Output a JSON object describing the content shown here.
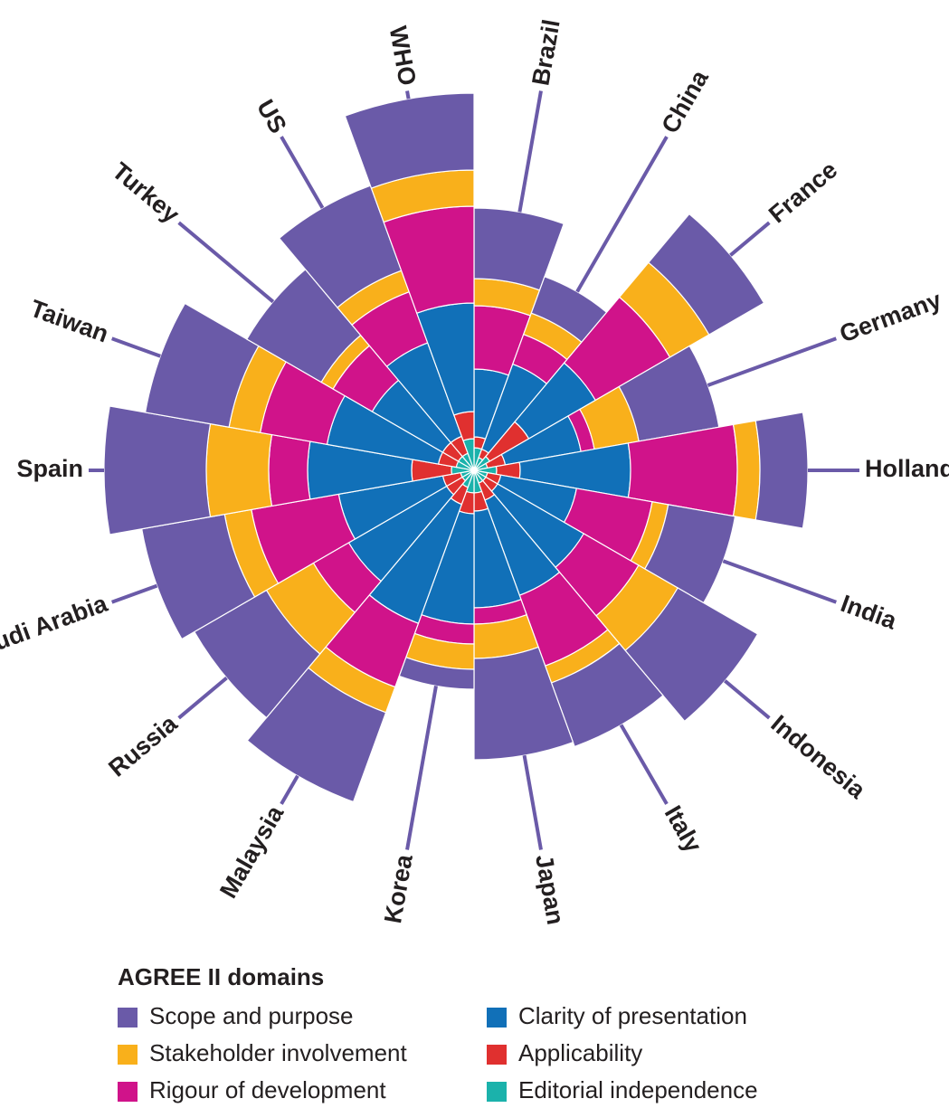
{
  "chart_data": {
    "type": "stacked-polar-bar",
    "categories": [
      "Brazil",
      "China",
      "France",
      "Germany",
      "Holland",
      "India",
      "Indonesia",
      "Italy",
      "Japan",
      "Korea",
      "Malaysia",
      "Russia",
      "Saudi Arabia",
      "Spain",
      "Taiwan",
      "Turkey",
      "US",
      "WHO"
    ],
    "legend_title": "AGREE II domains",
    "series": [
      {
        "name": "Scope and purpose",
        "color": "#6a5aa8",
        "values": [
          78,
          43,
          70,
          90,
          53,
          75,
          102,
          75,
          112,
          22,
          105,
          92,
          93,
          113,
          94,
          95,
          100,
          85
        ]
      },
      {
        "name": "Stakeholder involvement",
        "color": "#f9b01b",
        "values": [
          30,
          25,
          50,
          50,
          25,
          18,
          50,
          20,
          38,
          28,
          30,
          60,
          30,
          69,
          35,
          15,
          25,
          40
        ]
      },
      {
        "name": "Rigour of development",
        "color": "#d0138a",
        "values": [
          70,
          35,
          95,
          15,
          118,
          85,
          70,
          83,
          18,
          22,
          75,
          45,
          98,
          43,
          75,
          50,
          60,
          107
        ]
      },
      {
        "name": "Clarity of presentation",
        "color": "#1170b8",
        "values": [
          75,
          100,
          85,
          85,
          122,
          85,
          110,
          112,
          107,
          122,
          140,
          125,
          117,
          115,
          125,
          90,
          110,
          120
        ]
      },
      {
        "name": "Applicability",
        "color": "#e0302f",
        "values": [
          12,
          10,
          50,
          20,
          26,
          15,
          15,
          20,
          20,
          23,
          20,
          20,
          20,
          44,
          20,
          20,
          20,
          30
        ]
      },
      {
        "name": "Editorial independence",
        "color": "#1bb2ab",
        "values": [
          25,
          15,
          20,
          15,
          25,
          15,
          15,
          15,
          25,
          25,
          20,
          15,
          15,
          25,
          20,
          20,
          20,
          35
        ]
      }
    ]
  }
}
